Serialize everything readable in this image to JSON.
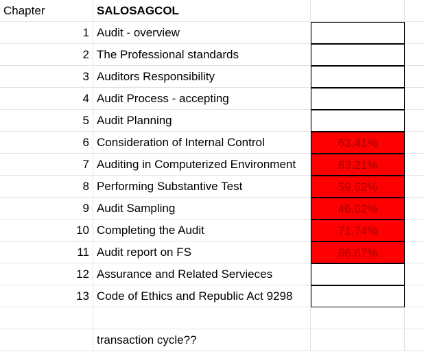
{
  "header": {
    "chapter_label": "Chapter",
    "title": "SALOSAGCOL"
  },
  "rows": [
    {
      "num": "1",
      "name": "Audit - overview",
      "score": ""
    },
    {
      "num": "2",
      "name": "The Professional standards",
      "score": ""
    },
    {
      "num": "3",
      "name": "Auditors Responsibility",
      "score": ""
    },
    {
      "num": "4",
      "name": "Audit Process - accepting",
      "score": ""
    },
    {
      "num": "5",
      "name": "Audit Planning",
      "score": ""
    },
    {
      "num": "6",
      "name": "Consideration of Internal Control",
      "score": "63.41%"
    },
    {
      "num": "7",
      "name": "Auditing in Computerized Environment",
      "score": "63.21%"
    },
    {
      "num": "8",
      "name": "Performing Substantive Test",
      "score": "59.62%"
    },
    {
      "num": "9",
      "name": "Audit Sampling",
      "score": "46.62%"
    },
    {
      "num": "10",
      "name": "Completing the Audit",
      "score": "71.74%"
    },
    {
      "num": "11",
      "name": "Audit report on FS",
      "score": "66.67%"
    },
    {
      "num": "12",
      "name": "Assurance and Related Servieces",
      "score": ""
    },
    {
      "num": "13",
      "name": "Code of Ethics and Republic Act 9298",
      "score": ""
    }
  ],
  "note": "transaction cycle??",
  "colors": {
    "highlight_fill": "#ff0000",
    "highlight_text": "#a50000",
    "gridline": "#e2e3e3"
  }
}
